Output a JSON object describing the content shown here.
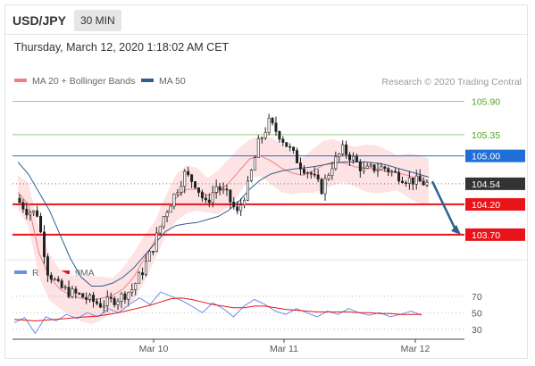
{
  "header": {
    "pair": "USD/JPY",
    "interval": "30 MIN",
    "datetime": "Thursday, March 12, 2020 1:18:02 AM CET"
  },
  "legend": {
    "ma_bollinger": "MA 20 + Bollinger Bands",
    "ma50": "MA 50",
    "rsi": "RSI",
    "ma9": "9MA",
    "credit": "Research © 2020 Trading Central"
  },
  "colors": {
    "ma_bollinger": "#f08080",
    "ma50": "#2e5f91",
    "resistance_green": "#4fa81f",
    "pivot_blue": "#1f6fd6",
    "support_red": "#e8141a",
    "last_price": "#333333",
    "rsi": "#6c8ee8",
    "ma9": "#e8141a"
  },
  "chart_data": [
    {
      "type": "candlestick",
      "y_range": [
        103.3,
        106.1
      ],
      "x_tick_labels": [
        "Mar 10",
        "Mar 11",
        "Mar 12"
      ],
      "levels": [
        {
          "label": "105.90",
          "value": 105.9,
          "kind": "resistance"
        },
        {
          "label": "105.35",
          "value": 105.35,
          "kind": "resistance"
        },
        {
          "label": "105.00",
          "value": 105.0,
          "kind": "pivot"
        },
        {
          "label": "104.54",
          "value": 104.54,
          "kind": "last"
        },
        {
          "label": "104.20",
          "value": 104.2,
          "kind": "support"
        },
        {
          "label": "103.70",
          "value": 103.7,
          "kind": "support"
        }
      ],
      "close_path": [
        104.3,
        104.1,
        104.05,
        103.1,
        102.85,
        102.75,
        102.7,
        102.62,
        102.55,
        102.6,
        102.68,
        102.8,
        103.1,
        103.5,
        104.0,
        104.35,
        104.7,
        104.55,
        104.2,
        104.5,
        104.35,
        104.05,
        104.5,
        105.2,
        105.55,
        105.35,
        105.1,
        104.85,
        104.7,
        104.45,
        104.85,
        105.1,
        104.95,
        104.75,
        104.8,
        104.8,
        104.7,
        104.62,
        104.58,
        104.54
      ],
      "ma20_path": [
        104.4,
        104.2,
        103.4,
        103.0,
        102.8,
        102.7,
        102.65,
        102.62,
        102.65,
        102.7,
        102.8,
        103.0,
        103.3,
        103.6,
        104.0,
        104.3,
        104.45,
        104.45,
        104.35,
        104.4,
        104.55,
        104.75,
        104.95,
        105.0,
        104.92,
        104.8,
        104.72,
        104.68,
        104.75,
        104.85,
        104.9,
        104.88,
        104.82,
        104.8,
        104.78,
        104.75,
        104.72,
        104.68,
        104.62,
        104.58
      ],
      "ma50_path": [
        104.9,
        104.7,
        104.4,
        104.1,
        103.7,
        103.3,
        103.0,
        102.85,
        102.85,
        102.9,
        103.0,
        103.15,
        103.35,
        103.55,
        103.75,
        103.85,
        103.88,
        103.9,
        103.95,
        104.0,
        104.1,
        104.25,
        104.45,
        104.6,
        104.7,
        104.75,
        104.78,
        104.8,
        104.82,
        104.85,
        104.88,
        104.9,
        104.9,
        104.9,
        104.88,
        104.85,
        104.8,
        104.75,
        104.7,
        104.65
      ]
    },
    {
      "type": "line",
      "y_tick_labels": [
        "70",
        "50",
        "30"
      ],
      "y_range": [
        20,
        85
      ],
      "series": [
        {
          "name": "RSI",
          "values": [
            38,
            44,
            25,
            45,
            40,
            48,
            43,
            50,
            45,
            55,
            50,
            60,
            68,
            60,
            75,
            70,
            65,
            58,
            50,
            62,
            55,
            45,
            58,
            66,
            60,
            52,
            48,
            55,
            50,
            45,
            52,
            48,
            55,
            50,
            47,
            50,
            45,
            48,
            52,
            47
          ]
        },
        {
          "name": "9MA",
          "values": [
            42,
            41,
            40,
            41,
            42,
            43,
            44,
            45,
            46,
            48,
            50,
            53,
            56,
            59,
            63,
            67,
            68,
            66,
            63,
            60,
            58,
            56,
            56,
            58,
            58,
            56,
            54,
            53,
            52,
            51,
            51,
            51,
            51,
            50,
            50,
            49,
            49,
            48,
            48,
            48
          ]
        }
      ]
    }
  ]
}
